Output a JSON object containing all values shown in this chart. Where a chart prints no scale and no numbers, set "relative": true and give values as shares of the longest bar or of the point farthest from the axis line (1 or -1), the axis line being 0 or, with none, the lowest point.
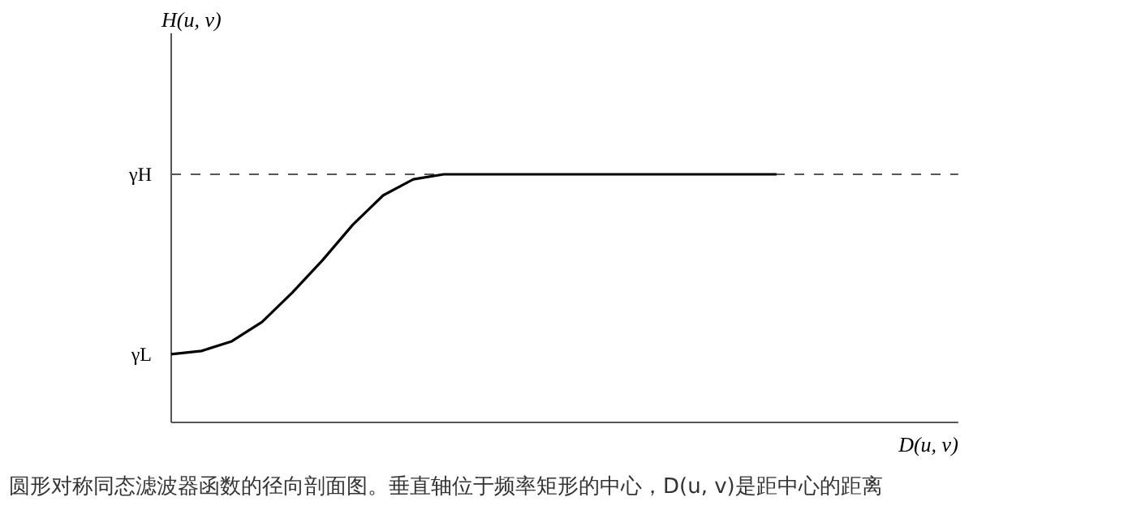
{
  "chart_data": {
    "type": "line",
    "relative": true,
    "xlabel": "D(u, v)",
    "categories": [
      null,
      null,
      null,
      null,
      null,
      null,
      null,
      null,
      null,
      null,
      null,
      null,
      null,
      null,
      null,
      null,
      null,
      null,
      null,
      null,
      null,
      null,
      null,
      null,
      null,
      null,
      null
    ],
    "series": [
      {
        "color": "#000000",
        "values": [
          0.275,
          0.288,
          0.327,
          0.405,
          0.523,
          0.654,
          0.797,
          0.915,
          0.98,
          1,
          1,
          1,
          1,
          1,
          1,
          1,
          1,
          1,
          1,
          1,
          1,
          null,
          null,
          null,
          null,
          null,
          null
        ]
      }
    ],
    "ref_lines": [
      {
        "axis": "y",
        "value": 1,
        "label": "γH",
        "line_style": "dashed",
        "color": "#555555"
      }
    ],
    "annotations": [
      "H(u, v)",
      "γL",
      "圆形对称同态滤波器函数的径向剖面图。垂直轴位于频率矩形的中心，D(u, v)是距中心的距离"
    ],
    "line_style": "solid",
    "grid": false
  }
}
